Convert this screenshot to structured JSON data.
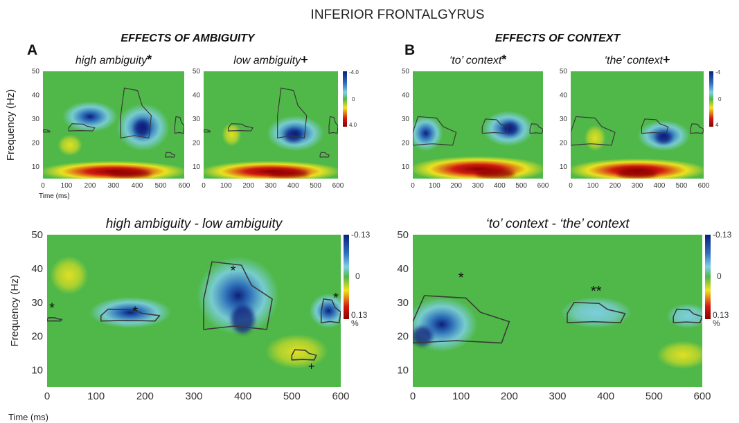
{
  "figure_title": "INFERIOR FRONTALGYRUS",
  "section_a": {
    "letter": "A",
    "heading": "EFFECTS OF AMBIGUITY"
  },
  "section_b": {
    "letter": "B",
    "heading": "EFFECTS OF CONTEXT"
  },
  "colors": {
    "green": "#4fb848",
    "light_blue": "#7fcfe6",
    "blue": "#2f6fc0",
    "navy": "#0a1f7a",
    "yellow": "#f2e41e",
    "red": "#d21a12",
    "dark_red": "#8c0000",
    "contour": "#3a3a3a"
  },
  "chart_data": [
    {
      "id": "high_ambiguity",
      "type": "heatmap",
      "title": "high ambiguity",
      "title_marker": "*",
      "xlabel": "Time (ms)",
      "ylabel": "Frequency (Hz)",
      "x_ticks": [
        0,
        100,
        200,
        300,
        400,
        500,
        600
      ],
      "y_ticks": [
        10,
        20,
        30,
        40,
        50
      ],
      "xlim": [
        0,
        600
      ],
      "ylim": [
        5,
        50
      ],
      "colorbar": null,
      "features": [
        {
          "kind": "power_increase",
          "t": [
            0,
            600
          ],
          "f": [
            5,
            11
          ],
          "peak_t": 370,
          "peak_f": 7
        },
        {
          "kind": "power_decrease",
          "t": [
            330,
            520
          ],
          "f": [
            18,
            35
          ],
          "peak_t": 420,
          "peak_f": 26
        },
        {
          "kind": "power_decrease",
          "t": [
            100,
            300
          ],
          "f": [
            26,
            36
          ]
        },
        {
          "kind": "power_increase_weak",
          "t": [
            80,
            150
          ],
          "f": [
            16,
            22
          ]
        }
      ],
      "contours": [
        {
          "t": [
            0,
            30
          ],
          "f": [
            24.5,
            25.5
          ]
        },
        {
          "t": [
            110,
            220
          ],
          "f": [
            25,
            28
          ]
        },
        {
          "t": [
            330,
            460
          ],
          "f": [
            22,
            43
          ]
        },
        {
          "t": [
            520,
            560
          ],
          "f": [
            14,
            16
          ]
        },
        {
          "t": [
            560,
            600
          ],
          "f": [
            24,
            31
          ]
        }
      ],
      "markers": []
    },
    {
      "id": "low_ambiguity",
      "type": "heatmap",
      "title": "low ambiguity",
      "title_marker": "+",
      "xlabel": "",
      "ylabel": "",
      "x_ticks": [
        0,
        100,
        200,
        300,
        400,
        500,
        600
      ],
      "y_ticks": [
        10,
        20,
        30,
        40,
        50
      ],
      "xlim": [
        0,
        600
      ],
      "ylim": [
        5,
        50
      ],
      "colorbar": {
        "min_label": "-4.0",
        "zero_label": "0",
        "max_label": "4.0"
      },
      "features": [
        {
          "kind": "power_increase",
          "t": [
            0,
            600
          ],
          "f": [
            5,
            11
          ],
          "peak_t": 380,
          "peak_f": 7
        },
        {
          "kind": "power_decrease",
          "t": [
            300,
            520
          ],
          "f": [
            18,
            30
          ],
          "peak_t": 400,
          "peak_f": 23
        },
        {
          "kind": "power_increase_weak",
          "t": [
            100,
            150
          ],
          "f": [
            20,
            27
          ]
        }
      ],
      "contours": [
        {
          "t": [
            0,
            30
          ],
          "f": [
            24.5,
            25.5
          ]
        },
        {
          "t": [
            110,
            220
          ],
          "f": [
            25,
            28
          ]
        },
        {
          "t": [
            330,
            460
          ],
          "f": [
            22,
            43
          ]
        },
        {
          "t": [
            520,
            560
          ],
          "f": [
            14,
            16
          ]
        },
        {
          "t": [
            560,
            600
          ],
          "f": [
            24,
            31
          ]
        }
      ],
      "markers": []
    },
    {
      "id": "to_context",
      "type": "heatmap",
      "title": "‘to’ context",
      "title_marker": "*",
      "xlabel": "",
      "ylabel": "",
      "x_ticks": [
        0,
        100,
        200,
        300,
        400,
        500,
        600
      ],
      "y_ticks": [
        10,
        20,
        30,
        40,
        50
      ],
      "xlim": [
        0,
        600
      ],
      "ylim": [
        5,
        50
      ],
      "colorbar": null,
      "features": [
        {
          "kind": "power_increase",
          "t": [
            0,
            600
          ],
          "f": [
            5,
            13
          ],
          "peak_t": 380,
          "peak_f": 7
        },
        {
          "kind": "power_decrease",
          "t": [
            340,
            540
          ],
          "f": [
            20,
            32
          ],
          "peak_t": 450,
          "peak_f": 26
        },
        {
          "kind": "power_decrease",
          "t": [
            0,
            120
          ],
          "f": [
            18,
            30
          ]
        }
      ],
      "contours": [
        {
          "t": [
            0,
            200
          ],
          "f": [
            19,
            31
          ]
        },
        {
          "t": [
            320,
            440
          ],
          "f": [
            24,
            30
          ]
        },
        {
          "t": [
            540,
            600
          ],
          "f": [
            24,
            28
          ]
        }
      ],
      "markers": []
    },
    {
      "id": "the_context",
      "type": "heatmap",
      "title": "‘the’ context",
      "title_marker": "+",
      "xlabel": "",
      "ylabel": "",
      "x_ticks": [
        0,
        100,
        200,
        300,
        400,
        500,
        600
      ],
      "y_ticks": [
        10,
        20,
        30,
        40,
        50
      ],
      "xlim": [
        0,
        600
      ],
      "ylim": [
        5,
        50
      ],
      "colorbar": {
        "min_label": "-4",
        "zero_label": "0",
        "max_label": "4"
      },
      "features": [
        {
          "kind": "power_increase",
          "t": [
            0,
            600
          ],
          "f": [
            5,
            12
          ],
          "peak_t": 300,
          "peak_f": 7
        },
        {
          "kind": "power_decrease",
          "t": [
            320,
            520
          ],
          "f": [
            18,
            28
          ],
          "peak_t": 420,
          "peak_f": 22
        },
        {
          "kind": "power_increase_weak",
          "t": [
            80,
            140
          ],
          "f": [
            18,
            26
          ]
        }
      ],
      "contours": [
        {
          "t": [
            0,
            200
          ],
          "f": [
            19,
            31
          ]
        },
        {
          "t": [
            320,
            440
          ],
          "f": [
            24,
            30
          ]
        },
        {
          "t": [
            540,
            600
          ],
          "f": [
            24,
            28
          ]
        }
      ],
      "markers": []
    },
    {
      "id": "ambiguity_difference",
      "type": "heatmap",
      "title": "high ambiguity - low ambiguity",
      "title_marker": "",
      "xlabel": "Time (ms)",
      "ylabel": "Frequency (Hz)",
      "x_ticks": [
        0,
        100,
        200,
        300,
        400,
        500,
        600
      ],
      "y_ticks": [
        10,
        20,
        30,
        40,
        50
      ],
      "xlim": [
        0,
        600
      ],
      "ylim": [
        5,
        50
      ],
      "colorbar": {
        "min_label": "-0.13",
        "zero_label": "0",
        "max_label": "0.13",
        "unit": "%"
      },
      "features": [
        {
          "kind": "power_decrease",
          "t": [
            320,
            460
          ],
          "f": [
            22,
            42
          ],
          "peak_t": 400,
          "peak_f": 25
        },
        {
          "kind": "power_decrease",
          "t": [
            100,
            240
          ],
          "f": [
            24,
            30
          ]
        },
        {
          "kind": "power_decrease",
          "t": [
            550,
            600
          ],
          "f": [
            24,
            31
          ]
        },
        {
          "kind": "power_increase_weak",
          "t": [
            20,
            70
          ],
          "f": [
            34,
            42
          ]
        },
        {
          "kind": "power_increase_weak",
          "t": [
            460,
            560
          ],
          "f": [
            12,
            19
          ]
        }
      ],
      "contours": [
        {
          "t": [
            0,
            30
          ],
          "f": [
            24.5,
            25.5
          ]
        },
        {
          "t": [
            110,
            230
          ],
          "f": [
            24.5,
            28
          ]
        },
        {
          "t": [
            320,
            460
          ],
          "f": [
            22,
            42
          ]
        },
        {
          "t": [
            500,
            550
          ],
          "f": [
            13,
            16
          ]
        },
        {
          "t": [
            560,
            600
          ],
          "f": [
            24,
            31
          ]
        }
      ],
      "markers": [
        {
          "text": "*",
          "t": 10,
          "f": 27
        },
        {
          "text": "*",
          "t": 180,
          "f": 26
        },
        {
          "text": "*",
          "t": 380,
          "f": 38
        },
        {
          "text": "*",
          "t": 590,
          "f": 30
        },
        {
          "text": "+",
          "t": 540,
          "f": 10
        }
      ]
    },
    {
      "id": "context_difference",
      "type": "heatmap",
      "title": "‘to’ context - ‘the’ context",
      "title_marker": "",
      "xlabel": "",
      "ylabel": "",
      "x_ticks": [
        0,
        100,
        200,
        300,
        400,
        500,
        600
      ],
      "y_ticks": [
        10,
        20,
        30,
        40,
        50
      ],
      "xlim": [
        0,
        600
      ],
      "ylim": [
        5,
        50
      ],
      "colorbar": {
        "min_label": "-0.13",
        "zero_label": "0",
        "max_label": "0.13",
        "unit": "%"
      },
      "features": [
        {
          "kind": "power_decrease",
          "t": [
            0,
            120
          ],
          "f": [
            17,
            30
          ],
          "peak_t": 20,
          "peak_f": 20
        },
        {
          "kind": "power_decrease_weak",
          "t": [
            320,
            440
          ],
          "f": [
            24,
            30
          ]
        },
        {
          "kind": "power_decrease_weak",
          "t": [
            540,
            600
          ],
          "f": [
            24,
            28
          ]
        },
        {
          "kind": "power_increase_weak",
          "t": [
            520,
            600
          ],
          "f": [
            12,
            17
          ]
        }
      ],
      "contours": [
        {
          "t": [
            0,
            200
          ],
          "f": [
            18,
            32
          ]
        },
        {
          "t": [
            320,
            440
          ],
          "f": [
            24,
            30
          ]
        },
        {
          "t": [
            540,
            600
          ],
          "f": [
            24,
            28
          ]
        }
      ],
      "markers": [
        {
          "text": "*",
          "t": 100,
          "f": 36
        },
        {
          "text": "**",
          "t": 380,
          "f": 32
        }
      ]
    }
  ]
}
